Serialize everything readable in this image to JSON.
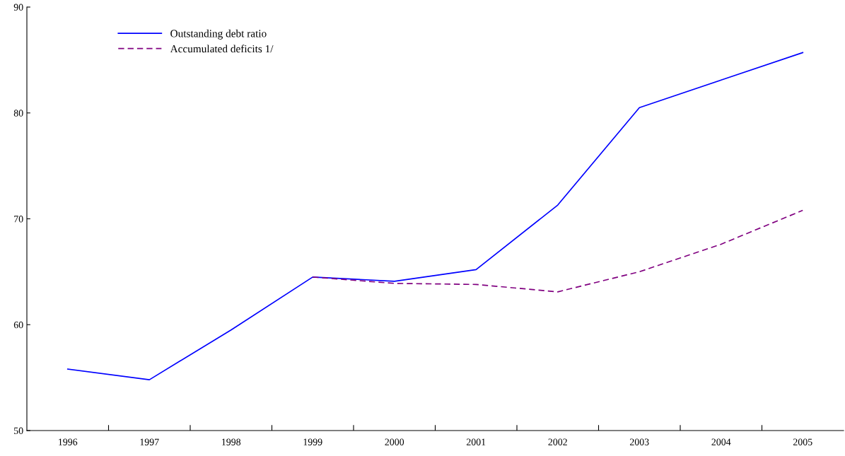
{
  "chart_data": {
    "type": "line",
    "categories": [
      "1996",
      "1997",
      "1998",
      "1999",
      "2000",
      "2001",
      "2002",
      "2003",
      "2004",
      "2005"
    ],
    "series": [
      {
        "name": "Outstanding debt ratio",
        "color": "#0000ff",
        "line_style": "solid",
        "values": [
          55.8,
          54.8,
          59.5,
          64.5,
          64.1,
          65.2,
          71.3,
          80.5,
          83.1,
          85.7
        ]
      },
      {
        "name": "Accumulated deficits 1/",
        "color": "#800080",
        "line_style": "dashed",
        "values": [
          null,
          null,
          null,
          64.5,
          63.9,
          63.8,
          63.1,
          65.0,
          67.6,
          70.8
        ]
      }
    ],
    "ylim": [
      50,
      90
    ],
    "yticks": [
      50,
      60,
      70,
      80,
      90
    ],
    "grid": false,
    "legend": "top left"
  }
}
